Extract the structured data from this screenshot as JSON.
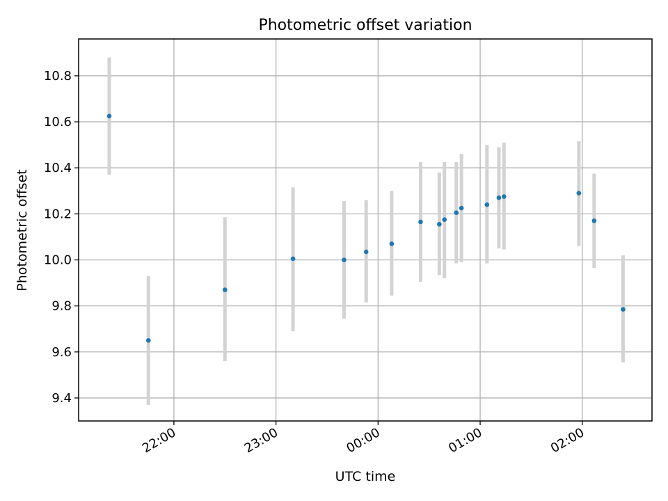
{
  "chart_data": {
    "type": "scatter",
    "title": "Photometric offset variation",
    "xlabel": "UTC time",
    "ylabel": "Photometric offset",
    "x_ticks": [
      "22:00",
      "23:00",
      "00:00",
      "01:00",
      "02:00"
    ],
    "y_ticks": [
      "9.4",
      "9.6",
      "9.8",
      "10.0",
      "10.2",
      "10.4",
      "10.6",
      "10.8"
    ],
    "x_tick_times": [
      "22:00",
      "23:00",
      "00:00",
      "01:00",
      "02:00"
    ],
    "y_tick_values": [
      9.4,
      9.6,
      9.8,
      10.0,
      10.2,
      10.4,
      10.6,
      10.8
    ],
    "xlim": [
      "21:04",
      "02:41"
    ],
    "ylim": [
      9.3,
      10.96
    ],
    "grid": true,
    "marker_color": "#1f77b4",
    "errorbar_color": "#d3d3d3",
    "points": [
      {
        "x": "21:22",
        "y": 10.625,
        "y_low": 10.37,
        "y_high": 10.88
      },
      {
        "x": "21:45",
        "y": 9.65,
        "y_low": 9.37,
        "y_high": 9.93
      },
      {
        "x": "22:30",
        "y": 9.87,
        "y_low": 9.56,
        "y_high": 10.185
      },
      {
        "x": "23:10",
        "y": 10.005,
        "y_low": 9.69,
        "y_high": 10.315
      },
      {
        "x": "23:40",
        "y": 10.0,
        "y_low": 9.745,
        "y_high": 10.255
      },
      {
        "x": "23:53",
        "y": 10.035,
        "y_low": 9.815,
        "y_high": 10.26
      },
      {
        "x": "00:08",
        "y": 10.07,
        "y_low": 9.845,
        "y_high": 10.3
      },
      {
        "x": "00:25",
        "y": 10.165,
        "y_low": 9.905,
        "y_high": 10.425
      },
      {
        "x": "00:36",
        "y": 10.155,
        "y_low": 9.935,
        "y_high": 10.38
      },
      {
        "x": "00:39",
        "y": 10.175,
        "y_low": 9.92,
        "y_high": 10.425
      },
      {
        "x": "00:46",
        "y": 10.205,
        "y_low": 9.985,
        "y_high": 10.425
      },
      {
        "x": "00:49",
        "y": 10.225,
        "y_low": 9.99,
        "y_high": 10.46
      },
      {
        "x": "01:04",
        "y": 10.24,
        "y_low": 9.985,
        "y_high": 10.5
      },
      {
        "x": "01:11",
        "y": 10.27,
        "y_low": 10.05,
        "y_high": 10.49
      },
      {
        "x": "01:14",
        "y": 10.275,
        "y_low": 10.045,
        "y_high": 10.51
      },
      {
        "x": "01:58",
        "y": 10.29,
        "y_low": 10.06,
        "y_high": 10.515
      },
      {
        "x": "02:07",
        "y": 10.17,
        "y_low": 9.965,
        "y_high": 10.375
      },
      {
        "x": "02:24",
        "y": 9.785,
        "y_low": 9.555,
        "y_high": 10.02
      }
    ]
  }
}
